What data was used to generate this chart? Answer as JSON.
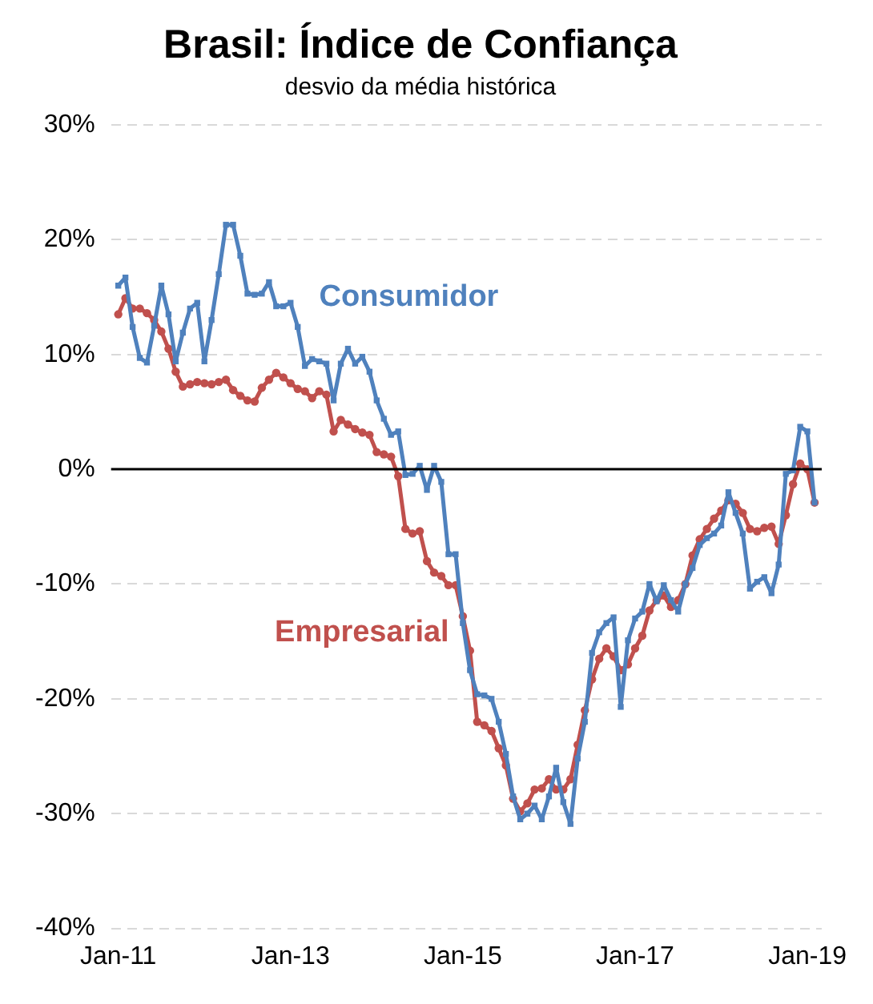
{
  "chart_data": {
    "type": "line",
    "title": "Brasil: Índice de Confiança",
    "subtitle": "desvio da média histórica",
    "x": [
      "2011-01",
      "2011-02",
      "2011-03",
      "2011-04",
      "2011-05",
      "2011-06",
      "2011-07",
      "2011-08",
      "2011-09",
      "2011-10",
      "2011-11",
      "2011-12",
      "2012-01",
      "2012-02",
      "2012-03",
      "2012-04",
      "2012-05",
      "2012-06",
      "2012-07",
      "2012-08",
      "2012-09",
      "2012-10",
      "2012-11",
      "2012-12",
      "2013-01",
      "2013-02",
      "2013-03",
      "2013-04",
      "2013-05",
      "2013-06",
      "2013-07",
      "2013-08",
      "2013-09",
      "2013-10",
      "2013-11",
      "2013-12",
      "2014-01",
      "2014-02",
      "2014-03",
      "2014-04",
      "2014-05",
      "2014-06",
      "2014-07",
      "2014-08",
      "2014-09",
      "2014-10",
      "2014-11",
      "2014-12",
      "2015-01",
      "2015-02",
      "2015-03",
      "2015-04",
      "2015-05",
      "2015-06",
      "2015-07",
      "2015-08",
      "2015-09",
      "2015-10",
      "2015-11",
      "2015-12",
      "2016-01",
      "2016-02",
      "2016-03",
      "2016-04",
      "2016-05",
      "2016-06",
      "2016-07",
      "2016-08",
      "2016-09",
      "2016-10",
      "2016-11",
      "2016-12",
      "2017-01",
      "2017-02",
      "2017-03",
      "2017-04",
      "2017-05",
      "2017-06",
      "2017-07",
      "2017-08",
      "2017-09",
      "2017-10",
      "2017-11",
      "2017-12",
      "2018-01",
      "2018-02",
      "2018-03",
      "2018-04",
      "2018-05",
      "2018-06",
      "2018-07",
      "2018-08",
      "2018-09",
      "2018-10",
      "2018-11",
      "2018-12",
      "2019-01",
      "2019-02"
    ],
    "series": [
      {
        "name": "Consumidor",
        "color": "#4f81bd",
        "marker": "square",
        "values": [
          16,
          16.7,
          12.4,
          9.7,
          9.3,
          12.5,
          16,
          13.5,
          9.4,
          11.9,
          14,
          14.5,
          9.4,
          13,
          17,
          21.3,
          21.3,
          18.6,
          15.3,
          15.2,
          15.3,
          16.3,
          14.2,
          14.2,
          14.5,
          12.4,
          9,
          9.6,
          9.4,
          9.2,
          6,
          9.2,
          10.5,
          9.2,
          9.8,
          8.5,
          6,
          4.4,
          3,
          3.3,
          -0.5,
          -0.4,
          0.3,
          -1.8,
          0.3,
          -1.1,
          -7.4,
          -7.4,
          -13.4,
          -17.5,
          -19.6,
          -19.7,
          -20,
          -22,
          -24.8,
          -28.5,
          -30.5,
          -30,
          -29.3,
          -30.5,
          -28.5,
          -26,
          -29,
          -30.9,
          -25.2,
          -22,
          -16,
          -14.2,
          -13.4,
          -12.9,
          -20.7,
          -14.9,
          -13,
          -12.4,
          -10,
          -11.5,
          -10.1,
          -11.4,
          -12.4,
          -10,
          -8.6,
          -6.6,
          -6,
          -5.6,
          -4.9,
          -2,
          -3.8,
          -5.6,
          -10.4,
          -9.8,
          -9.4,
          -10.8,
          -8.3,
          -0.4,
          -0.1,
          3.7,
          3.3,
          -2.9
        ]
      },
      {
        "name": "Empresarial",
        "color": "#c0504d",
        "marker": "circle",
        "values": [
          13.5,
          14.9,
          14,
          14,
          13.6,
          13,
          12,
          10.5,
          8.5,
          7.2,
          7.4,
          7.6,
          7.5,
          7.4,
          7.6,
          7.8,
          6.9,
          6.4,
          6,
          5.9,
          7.1,
          7.8,
          8.4,
          8,
          7.5,
          7,
          6.8,
          6.2,
          6.8,
          6.5,
          3.3,
          4.3,
          3.9,
          3.5,
          3.2,
          3,
          1.5,
          1.3,
          1.1,
          -0.6,
          -5.2,
          -5.6,
          -5.4,
          -8,
          -9,
          -9.3,
          -10.1,
          -10.1,
          -12.8,
          -15.8,
          -22,
          -22.3,
          -22.8,
          -24.3,
          -25.8,
          -28.7,
          -29.8,
          -29.1,
          -27.9,
          -27.8,
          -27,
          -27.9,
          -27.9,
          -27,
          -24,
          -21,
          -18.3,
          -16.5,
          -15.6,
          -16.3,
          -17.5,
          -17,
          -15.6,
          -14.5,
          -12.3,
          -11.4,
          -11,
          -12,
          -11.4,
          -10,
          -7.5,
          -6.1,
          -5.2,
          -4.3,
          -3.6,
          -2.7,
          -3,
          -3.8,
          -5.2,
          -5.4,
          -5.1,
          -5,
          -6.5,
          -4,
          -1.3,
          0.5,
          0,
          -2.9
        ]
      }
    ],
    "xlim": [
      "2010-12",
      "2019-03"
    ],
    "xticks": [
      {
        "value": "2011-01",
        "label": "Jan-11"
      },
      {
        "value": "2013-01",
        "label": "Jan-13"
      },
      {
        "value": "2015-01",
        "label": "Jan-15"
      },
      {
        "value": "2017-01",
        "label": "Jan-17"
      },
      {
        "value": "2019-01",
        "label": "Jan-19"
      }
    ],
    "ylim": [
      -40,
      30
    ],
    "yticks": [
      {
        "value": -40,
        "label": "-40%"
      },
      {
        "value": -30,
        "label": "-30%"
      },
      {
        "value": -20,
        "label": "-20%"
      },
      {
        "value": -10,
        "label": "-10%"
      },
      {
        "value": 0,
        "label": "0%"
      },
      {
        "value": 10,
        "label": "10%"
      },
      {
        "value": 20,
        "label": "20%"
      },
      {
        "value": 30,
        "label": "30%"
      }
    ],
    "ref_lines": [
      {
        "axis": "y",
        "value": 0,
        "color": "#000000"
      }
    ],
    "grid": "y",
    "legend": false,
    "line_style": "solid"
  }
}
